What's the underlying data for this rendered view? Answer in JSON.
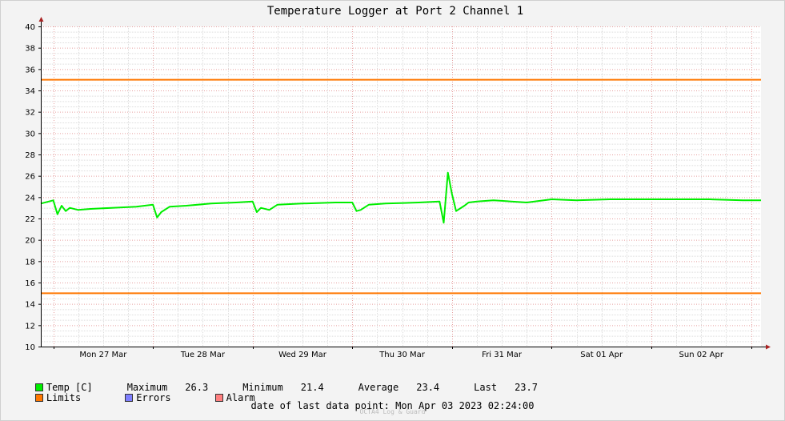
{
  "chart_data": {
    "type": "line",
    "title": "Temperature Logger at Port 2 Channel 1",
    "xlabel": "",
    "ylabel": "",
    "ylim": [
      10,
      40
    ],
    "yticks": [
      10,
      12,
      14,
      16,
      18,
      20,
      22,
      24,
      26,
      28,
      30,
      32,
      34,
      36,
      38,
      40
    ],
    "xlim": [
      "2023-03-26 21:00",
      "2023-04-03 02:24"
    ],
    "xticks": [
      "Mon 27 Mar",
      "Tue 28 Mar",
      "Wed 29 Mar",
      "Thu 30 Mar",
      "Fri 31 Mar",
      "Sat 01 Apr",
      "Sun 02 Apr"
    ],
    "grid": true,
    "legend_position": "bottom",
    "series": [
      {
        "name": "Temp [C]",
        "color": "#00ee00",
        "x": [
          "2023-03-26 21:00",
          "2023-03-27 00:00",
          "2023-03-27 01:00",
          "2023-03-27 02:00",
          "2023-03-27 03:00",
          "2023-03-27 04:00",
          "2023-03-27 06:00",
          "2023-03-27 09:00",
          "2023-03-27 14:00",
          "2023-03-27 20:00",
          "2023-03-28 00:00",
          "2023-03-28 01:00",
          "2023-03-28 02:00",
          "2023-03-28 04:00",
          "2023-03-28 08:00",
          "2023-03-28 14:00",
          "2023-03-28 20:00",
          "2023-03-29 00:00",
          "2023-03-29 01:00",
          "2023-03-29 02:00",
          "2023-03-29 04:00",
          "2023-03-29 06:00",
          "2023-03-29 12:00",
          "2023-03-29 20:00",
          "2023-03-30 00:00",
          "2023-03-30 01:00",
          "2023-03-30 02:00",
          "2023-03-30 04:00",
          "2023-03-30 08:00",
          "2023-03-30 16:00",
          "2023-03-30 21:00",
          "2023-03-30 22:00",
          "2023-03-30 23:00",
          "2023-03-31 00:00",
          "2023-03-31 01:00",
          "2023-03-31 03:00",
          "2023-03-31 04:00",
          "2023-03-31 06:00",
          "2023-03-31 10:00",
          "2023-03-31 18:00",
          "2023-04-01 00:00",
          "2023-04-01 06:00",
          "2023-04-01 14:00",
          "2023-04-01 22:00",
          "2023-04-02 06:00",
          "2023-04-02 14:00",
          "2023-04-02 22:00",
          "2023-04-03 02:24"
        ],
        "y": [
          23.4,
          23.7,
          22.4,
          23.2,
          22.7,
          23.0,
          22.8,
          22.9,
          23.0,
          23.1,
          23.3,
          22.1,
          22.6,
          23.1,
          23.2,
          23.4,
          23.5,
          23.6,
          22.6,
          23.0,
          22.8,
          23.3,
          23.4,
          23.5,
          23.5,
          22.7,
          22.8,
          23.3,
          23.4,
          23.5,
          23.6,
          21.6,
          26.3,
          24.3,
          22.7,
          23.2,
          23.5,
          23.6,
          23.7,
          23.5,
          23.8,
          23.7,
          23.8,
          23.8,
          23.8,
          23.8,
          23.7,
          23.7
        ]
      }
    ],
    "limits": [
      35,
      15
    ],
    "limits_color": "#ff7700",
    "stats": {
      "maximum": "26.3",
      "minimum": "21.4",
      "average": "23.4",
      "last": "23.7"
    }
  },
  "legend": {
    "temp_label": "Temp [C]",
    "maximum_label": "Maximum",
    "minimum_label": "Minimum",
    "average_label": "Average",
    "last_label": "Last",
    "limits_label": "Limits",
    "errors_label": "Errors",
    "alarm_label": "Alarm",
    "temp_color": "#00ee00",
    "limits_color": "#ff7700",
    "errors_color": "#7f7fff",
    "alarm_color": "#ff7f7f"
  },
  "footer": {
    "last_point_label": "date of last data point:",
    "last_point_value": "Mon Apr 03 2023 02:24:00",
    "watermark": "OCTA4 Log & Guard"
  }
}
